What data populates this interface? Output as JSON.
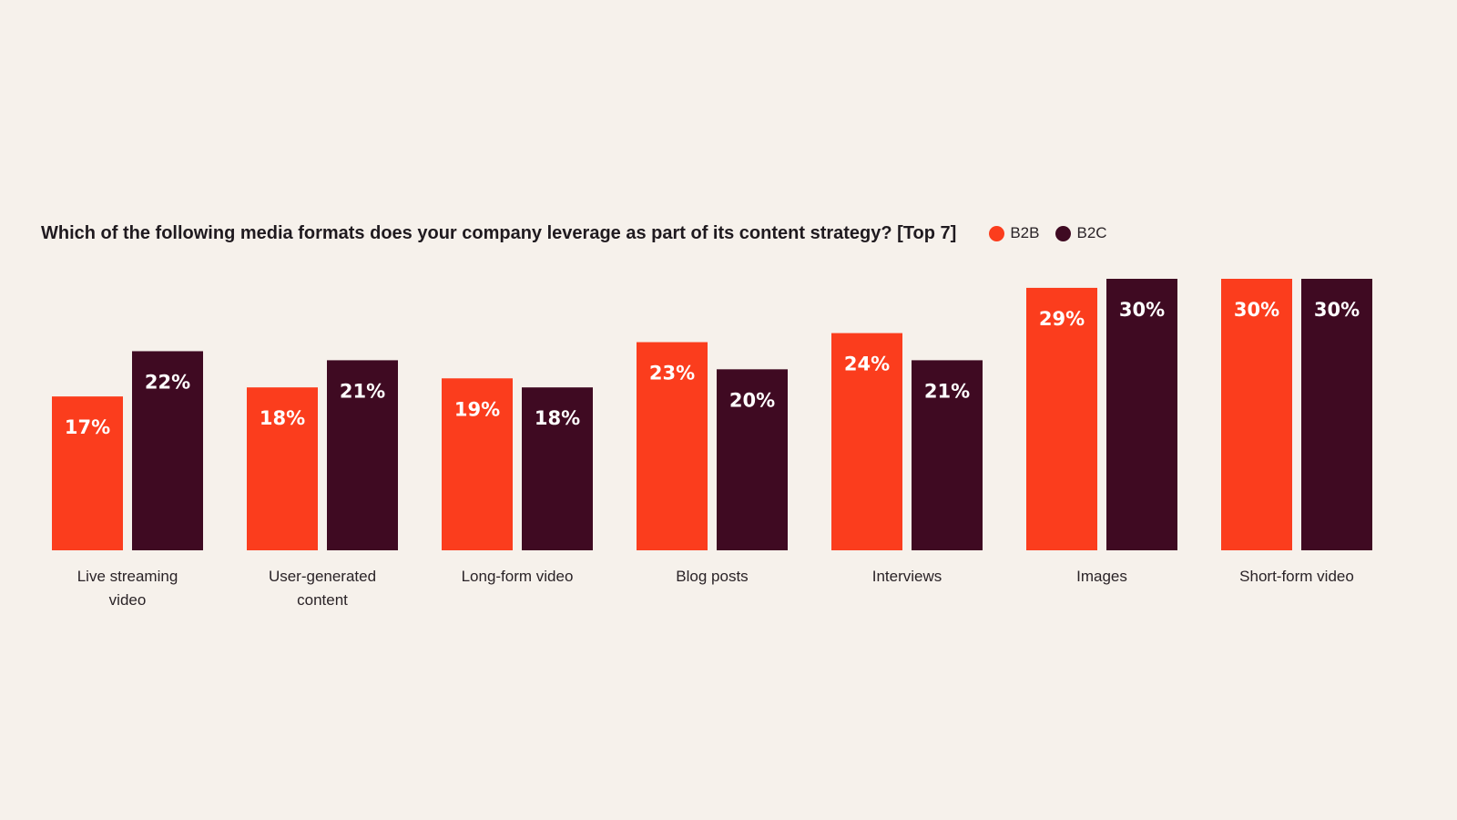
{
  "header": {
    "title": "Which of the following media formats does your company leverage as part of its content strategy? [Top 7]"
  },
  "legend": [
    {
      "label": "B2B",
      "color": "#fb3d1d"
    },
    {
      "label": "B2C",
      "color": "#3f0a22"
    }
  ],
  "chart_data": {
    "type": "bar",
    "title": "Which of the following media formats does your company leverage as part of its content strategy? [Top 7]",
    "categories": [
      "Live streaming video",
      "User-generated content",
      "Long-form video",
      "Blog posts",
      "Interviews",
      "Images",
      "Short-form video"
    ],
    "category_lines": [
      [
        "Live streaming",
        "video"
      ],
      [
        "User-generated",
        "content"
      ],
      [
        "Long-form video"
      ],
      [
        "Blog posts"
      ],
      [
        "Interviews"
      ],
      [
        "Images"
      ],
      [
        "Short-form video"
      ]
    ],
    "series": [
      {
        "name": "B2B",
        "color": "#fb3d1d",
        "values": [
          17,
          18,
          19,
          23,
          24,
          29,
          30
        ]
      },
      {
        "name": "B2C",
        "color": "#3f0a22",
        "values": [
          22,
          21,
          18,
          20,
          21,
          30,
          30
        ]
      }
    ],
    "value_suffix": "%",
    "xlabel": "",
    "ylabel": "",
    "ylim": [
      0,
      30
    ],
    "grid": false,
    "legend_position": "top"
  }
}
